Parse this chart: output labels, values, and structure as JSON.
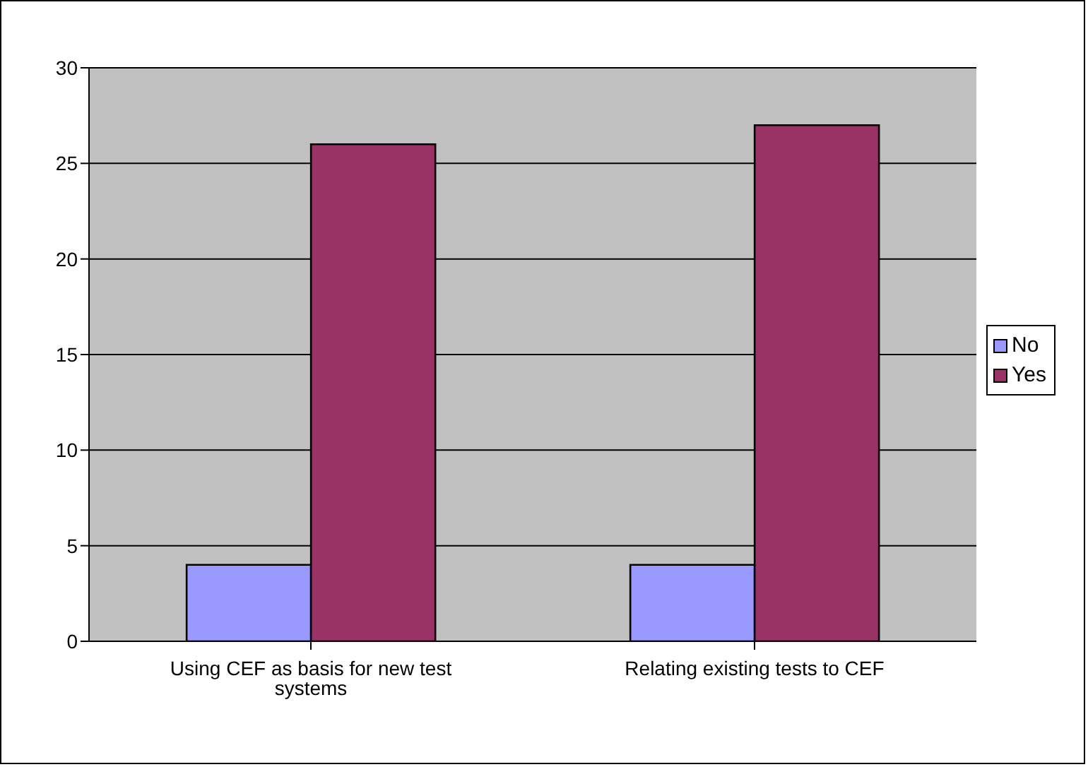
{
  "chart_data": {
    "type": "bar",
    "categories": [
      "Using CEF as basis for new test systems",
      "Relating existing tests to CEF"
    ],
    "series": [
      {
        "name": "No",
        "color": "#9999ff",
        "values": [
          4,
          4
        ]
      },
      {
        "name": "Yes",
        "color": "#993366",
        "values": [
          26,
          27
        ]
      }
    ],
    "ylim": [
      0,
      30
    ],
    "yticks": [
      0,
      5,
      10,
      15,
      20,
      25,
      30
    ],
    "grid": "y",
    "legend": "right"
  }
}
